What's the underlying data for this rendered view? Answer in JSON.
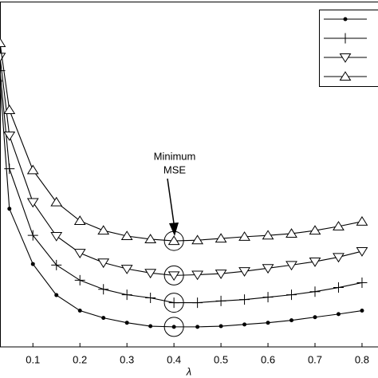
{
  "chart_data": {
    "type": "line",
    "x_label": "λ",
    "annotation": [
      "Minimum",
      "MSE"
    ],
    "x": [
      0.03,
      0.05,
      0.1,
      0.15,
      0.2,
      0.25,
      0.3,
      0.35,
      0.4,
      0.45,
      0.5,
      0.55,
      0.6,
      0.65,
      0.7,
      0.75,
      0.8
    ],
    "xlim": [
      0.03,
      0.834
    ],
    "xticks": [
      0.1,
      0.2,
      0.3,
      0.4,
      0.5,
      0.6,
      0.7,
      0.8
    ],
    "ylim": [
      0,
      100
    ],
    "grid": false,
    "legend": "upper right",
    "minimum_x": 0.4,
    "series": [
      {
        "color": "#000000",
        "marker": "dot",
        "values": [
          77,
          40,
          24,
          15,
          10.5,
          8.4,
          7,
          6,
          5.8,
          5.8,
          6,
          6.5,
          7,
          7.7,
          8.6,
          9.5,
          10.5
        ]
      },
      {
        "color": "#000000",
        "marker": "plus",
        "values": [
          80,
          51.6,
          32.3,
          23.7,
          19.3,
          16.7,
          15.1,
          14.2,
          12.8,
          12.8,
          13.3,
          13.7,
          14.4,
          15.1,
          16,
          17.2,
          18.6
        ]
      },
      {
        "color": "#000000",
        "marker": "triangle-down",
        "values": [
          84,
          61.2,
          41.9,
          32.1,
          27.2,
          24.4,
          22.6,
          21.4,
          20.7,
          20.9,
          21.2,
          21.9,
          22.8,
          23.7,
          24.7,
          26,
          27.7
        ]
      },
      {
        "color": "#000000",
        "marker": "triangle-up",
        "values": [
          88,
          68.6,
          51.2,
          41.9,
          36.5,
          33.7,
          32.1,
          31.2,
          30.7,
          30.9,
          31.4,
          31.9,
          32.3,
          32.8,
          33.7,
          34.9,
          36.3
        ]
      }
    ]
  }
}
